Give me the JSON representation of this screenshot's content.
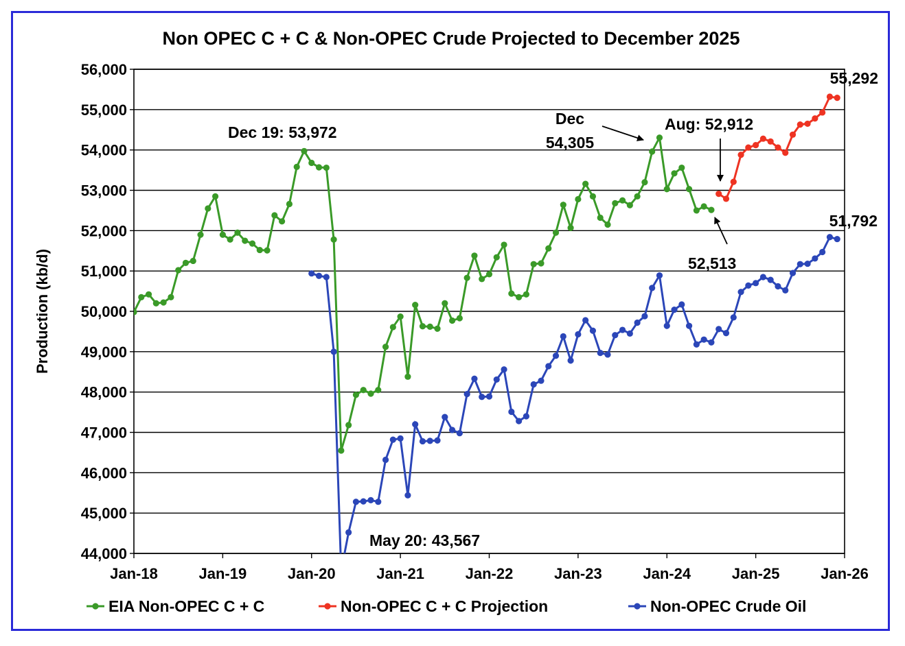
{
  "chart_data": {
    "type": "line",
    "title": "Non OPEC C + C & Non-OPEC Crude Projected to December 2025",
    "ylabel": "Production (kb/d)",
    "xlabel": "",
    "ylim": [
      44000,
      56000
    ],
    "y_ticks": [
      "44,000",
      "45,000",
      "46,000",
      "47,000",
      "48,000",
      "49,000",
      "50,000",
      "51,000",
      "52,000",
      "53,000",
      "54,000",
      "55,000",
      "56,000"
    ],
    "x_ticks": [
      "Jan-18",
      "Jan-19",
      "Jan-20",
      "Jan-21",
      "Jan-22",
      "Jan-23",
      "Jan-24",
      "Jan-25",
      "Jan-26"
    ],
    "x_range": [
      "2018-01",
      "2026-01"
    ],
    "grid": "horizontal",
    "legend_position": "bottom",
    "series": [
      {
        "name": "EIA Non-OPEC C + C",
        "color": "#3a9a28",
        "start": "2018-01",
        "values": [
          49980,
          50350,
          50420,
          50200,
          50220,
          50350,
          51020,
          51200,
          51250,
          51900,
          52550,
          52850,
          51900,
          51780,
          51950,
          51750,
          51680,
          51520,
          51510,
          52380,
          52230,
          52660,
          53580,
          53972,
          53680,
          53570,
          53560,
          51780,
          46550,
          47180,
          47930,
          48050,
          47960,
          48050,
          49120,
          49610,
          49870,
          48380,
          50160,
          49630,
          49620,
          49570,
          50200,
          49770,
          49830,
          50830,
          51380,
          50800,
          50920,
          51340,
          51650,
          50440,
          50350,
          50420,
          51170,
          51190,
          51560,
          51950,
          52640,
          52070,
          52780,
          53160,
          52850,
          52320,
          52150,
          52680,
          52750,
          52630,
          52850,
          53200,
          53960,
          54305,
          53030,
          53420,
          53560,
          53030,
          52500,
          52600,
          52513
        ]
      },
      {
        "name": "Non-OPEC C + C Projection",
        "color": "#ee3322",
        "start": "2024-08",
        "values": [
          52912,
          52790,
          53210,
          53880,
          54060,
          54120,
          54280,
          54210,
          54060,
          53930,
          54380,
          54630,
          54650,
          54780,
          54930,
          55320,
          55292
        ]
      },
      {
        "name": "Non-OPEC Crude Oil",
        "color": "#2b46b8",
        "start": "2020-01",
        "values": [
          50940,
          50880,
          50850,
          49000,
          43567,
          44520,
          45280,
          45290,
          45320,
          45280,
          46320,
          46820,
          46850,
          45440,
          47200,
          46780,
          46790,
          46800,
          47380,
          47060,
          46980,
          47950,
          48330,
          47880,
          47890,
          48310,
          48560,
          47510,
          47280,
          47400,
          48190,
          48280,
          48640,
          48900,
          49380,
          48780,
          49430,
          49780,
          49520,
          48970,
          48930,
          49410,
          49540,
          49450,
          49720,
          49880,
          50580,
          50890,
          49640,
          50040,
          50170,
          49640,
          49180,
          49300,
          49230,
          49560,
          49460,
          49850,
          50480,
          50640,
          50700,
          50850,
          50780,
          50620,
          50520,
          50950,
          51170,
          51180,
          51310,
          51470,
          51840,
          51792
        ]
      }
    ],
    "annotations": [
      {
        "text": "Dec 19: 53,972"
      },
      {
        "text": "May 20: 43,567"
      },
      {
        "text": "Dec"
      },
      {
        "text": "54,305"
      },
      {
        "text": "Aug: 52,912"
      },
      {
        "text": "52,513"
      },
      {
        "text": "55,292"
      },
      {
        "text": "51,792"
      }
    ]
  }
}
